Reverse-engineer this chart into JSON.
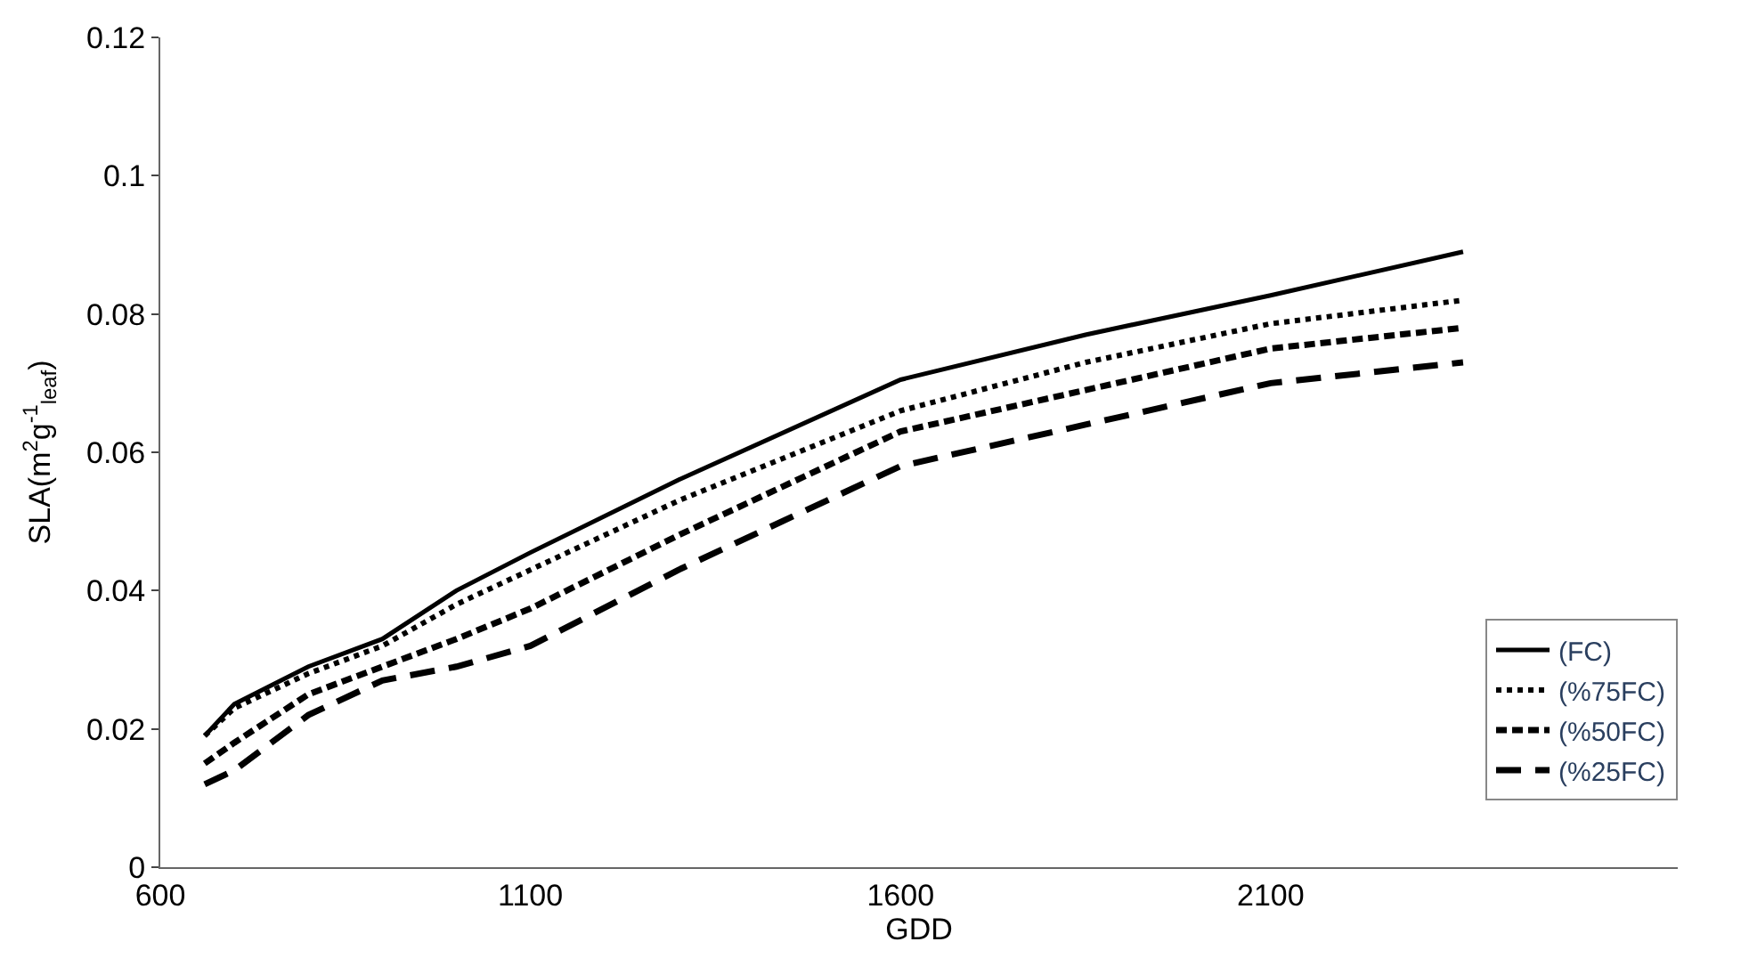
{
  "chart_data": {
    "type": "line",
    "xlabel": "GDD",
    "ylabel": "SLA(m$^{2}$g$^{-1}$$_{leaf}$)",
    "xlim": [
      600,
      2650
    ],
    "xticks": [
      600,
      1100,
      1600,
      2100
    ],
    "ylim": [
      0,
      0.12
    ],
    "yticks": [
      0,
      0.02,
      0.04,
      0.06,
      0.08,
      0.1,
      0.12
    ],
    "legend": "bottom right",
    "marker": "none",
    "x": [
      660,
      700,
      800,
      900,
      1000,
      1100,
      1300,
      1600,
      1850,
      2100,
      2360
    ],
    "series": [
      {
        "name": "(FC)",
        "color": "#000000",
        "line_style": "solid",
        "values": [
          0.019,
          0.0236,
          0.029,
          0.033,
          0.04,
          0.0455,
          0.056,
          0.0705,
          0.077,
          0.0827,
          0.089
        ]
      },
      {
        "name": "(%75FC)",
        "color": "#000000",
        "line_style": "dotted",
        "values": [
          0.019,
          0.023,
          0.028,
          0.032,
          0.038,
          0.043,
          0.053,
          0.066,
          0.073,
          0.0786,
          0.082
        ]
      },
      {
        "name": "(%50FC)",
        "color": "#000000",
        "line_style": "dashed",
        "values": [
          0.015,
          0.018,
          0.025,
          0.029,
          0.033,
          0.0374,
          0.048,
          0.063,
          0.069,
          0.075,
          0.078
        ]
      },
      {
        "name": "(%25FC)",
        "color": "#000000",
        "line_style": "dashed",
        "values": [
          0.012,
          0.014,
          0.022,
          0.027,
          0.029,
          0.032,
          0.043,
          0.058,
          0.064,
          0.07,
          0.073
        ]
      }
    ]
  }
}
